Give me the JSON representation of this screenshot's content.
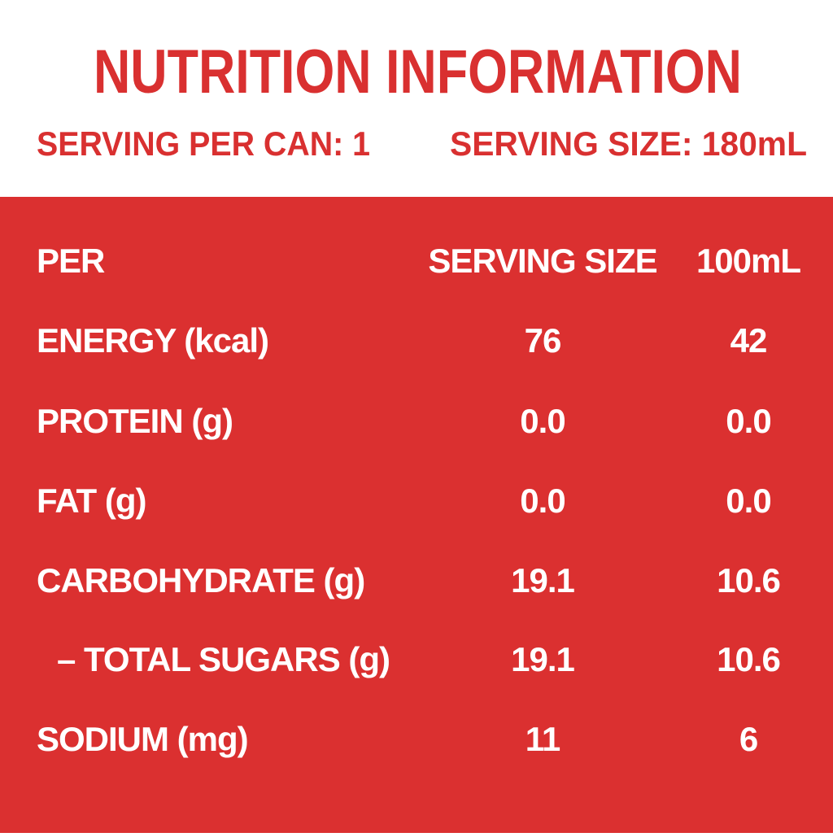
{
  "header": {
    "title": "NUTRITION INFORMATION",
    "serving_per_can": "SERVING PER CAN: 1",
    "serving_size": "SERVING SIZE: 180mL"
  },
  "table": {
    "columns": [
      "PER",
      "SERVING SIZE",
      "100mL"
    ],
    "rows": [
      [
        "ENERGY (kcal)",
        "76",
        "42"
      ],
      [
        "PROTEIN (g)",
        "0.0",
        "0.0"
      ],
      [
        "FAT (g)",
        "0.0",
        "0.0"
      ],
      [
        "CARBOHYDRATE (g)",
        "19.1",
        "10.6"
      ],
      [
        "– TOTAL SUGARS (g)",
        "19.1",
        "10.6"
      ],
      [
        "SODIUM (mg)",
        "11",
        "6"
      ]
    ]
  }
}
